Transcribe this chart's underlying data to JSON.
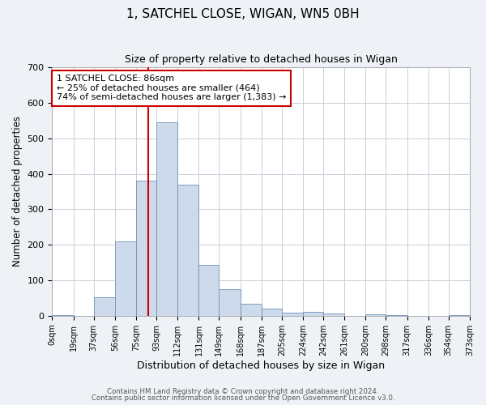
{
  "title": "1, SATCHEL CLOSE, WIGAN, WN5 0BH",
  "subtitle": "Size of property relative to detached houses in Wigan",
  "xlabel": "Distribution of detached houses by size in Wigan",
  "ylabel": "Number of detached properties",
  "bar_color": "#cddaeb",
  "bar_edge_color": "#7090b8",
  "vline_x": 86,
  "vline_color": "#cc0000",
  "bin_edges": [
    0,
    19,
    37,
    56,
    75,
    93,
    112,
    131,
    149,
    168,
    187,
    205,
    224,
    242,
    261,
    280,
    298,
    317,
    336,
    354,
    373
  ],
  "bin_labels": [
    "0sqm",
    "19sqm",
    "37sqm",
    "56sqm",
    "75sqm",
    "93sqm",
    "112sqm",
    "131sqm",
    "149sqm",
    "168sqm",
    "187sqm",
    "205sqm",
    "224sqm",
    "242sqm",
    "261sqm",
    "280sqm",
    "298sqm",
    "317sqm",
    "336sqm",
    "354sqm",
    "373sqm"
  ],
  "bar_heights": [
    2,
    0,
    52,
    210,
    380,
    545,
    370,
    143,
    75,
    33,
    20,
    8,
    10,
    6,
    0,
    5,
    2,
    0,
    0,
    2
  ],
  "ylim": [
    0,
    700
  ],
  "yticks": [
    0,
    100,
    200,
    300,
    400,
    500,
    600,
    700
  ],
  "annotation_line1": "1 SATCHEL CLOSE: 86sqm",
  "annotation_line2": "← 25% of detached houses are smaller (464)",
  "annotation_line3": "74% of semi-detached houses are larger (1,383) →",
  "footer_line1": "Contains HM Land Registry data © Crown copyright and database right 2024.",
  "footer_line2": "Contains public sector information licensed under the Open Government Licence v3.0.",
  "background_color": "#eef2f7",
  "plot_background": "#ffffff",
  "grid_color": "#c8d0da"
}
